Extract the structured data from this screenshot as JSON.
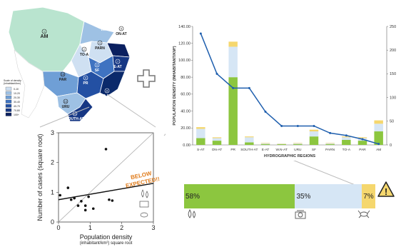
{
  "colors": {
    "green": "#8cc63f",
    "light_blue": "#d6e6f5",
    "yellow": "#f5d76e",
    "line_blue": "#1f5fae",
    "orange": "#e07b1a",
    "map_teal": "#b9e4cf",
    "map_dark": "#0b2a6b"
  },
  "map": {
    "regions": [
      {
        "code": "1",
        "name": "AM"
      },
      {
        "code": "2",
        "name": "TO-A"
      },
      {
        "code": "3",
        "name": "W.N-AT"
      },
      {
        "code": "4",
        "name": "PARN"
      },
      {
        "code": "5",
        "name": "ON-AT"
      },
      {
        "code": "6",
        "name": "SF"
      },
      {
        "code": "7",
        "name": "E-AT"
      },
      {
        "code": "8",
        "name": "S-AT"
      },
      {
        "code": "9",
        "name": "PR"
      },
      {
        "code": "10",
        "name": "PAR"
      },
      {
        "code": "11",
        "name": "SOUTH-AT"
      },
      {
        "code": "12",
        "name": "URU"
      }
    ],
    "legend": {
      "title": "Scale of density\n(inhabitant/km²)",
      "items": [
        {
          "label": "0-10",
          "color": "#cfe0f2"
        },
        {
          "label": "10-20",
          "color": "#9ec1e4"
        },
        {
          "label": "20-30",
          "color": "#6f9fd6"
        },
        {
          "label": "30-40",
          "color": "#3f73c1"
        },
        {
          "label": "40-70",
          "color": "#2350a3"
        },
        {
          "label": "70-80",
          "color": "#163784"
        },
        {
          "label": "100+",
          "color": "#0b2060"
        }
      ]
    }
  },
  "chart_data": [
    {
      "type": "bar",
      "title": "",
      "xlabel": "HYDROGRAPHIC REGIONS",
      "ylabel": "POPULATION DENSITY (INHABITANT/KM²)",
      "ylim": [
        0,
        140
      ],
      "y_ticks": [
        "0.00",
        "20.00",
        "40.00",
        "60.00",
        "80.00",
        "100.00",
        "120.00",
        "140.00"
      ],
      "y2lim": [
        0,
        250
      ],
      "y2_ticks": [
        "0",
        "50",
        "100",
        "150",
        "200",
        "250"
      ],
      "categories": [
        "S-AT",
        "ON-AT",
        "PR",
        "SOUTH-AT",
        "E-AT",
        "W.N-AT",
        "URU",
        "SF",
        "PARN",
        "TO-A",
        "PAR",
        "AM"
      ],
      "stacked": true,
      "series": [
        {
          "color": "#8cc63f",
          "values": [
            8,
            5,
            80,
            3,
            1,
            0.8,
            1,
            10,
            1,
            6,
            5,
            16
          ]
        },
        {
          "color": "#d6e6f5",
          "values": [
            11,
            3,
            36,
            6,
            1,
            0.5,
            1,
            6,
            1,
            3,
            3,
            9
          ]
        },
        {
          "color": "#f5d76e",
          "values": [
            2,
            1,
            6,
            1,
            0.5,
            0.3,
            0.5,
            2,
            0.5,
            1,
            1,
            4
          ]
        }
      ],
      "line": {
        "axis": "secondary",
        "color": "#1f5fae",
        "values": [
          235,
          150,
          120,
          120,
          70,
          40,
          40,
          40,
          25,
          20,
          12,
          2
        ]
      },
      "grid": false
    },
    {
      "type": "scatter",
      "title": "",
      "xlabel": "Population density",
      "xlabel_sub": "(inhabitant/km²) square root",
      "ylabel": "Number of cases (square root)",
      "xlim": [
        0,
        3
      ],
      "ylim": [
        0,
        3
      ],
      "x_ticks": [
        "0",
        "1",
        "2",
        "3"
      ],
      "y_ticks": [
        "0",
        "1",
        "2",
        "3"
      ],
      "points": [
        {
          "x": 0.05,
          "y": 0.9
        },
        {
          "x": 0.3,
          "y": 1.15
        },
        {
          "x": 0.4,
          "y": 0.75
        },
        {
          "x": 0.5,
          "y": 0.8
        },
        {
          "x": 0.62,
          "y": 0.55
        },
        {
          "x": 0.72,
          "y": 0.7
        },
        {
          "x": 0.85,
          "y": 0.4
        },
        {
          "x": 0.85,
          "y": 0.55
        },
        {
          "x": 0.95,
          "y": 0.85
        },
        {
          "x": 1.1,
          "y": 0.45
        },
        {
          "x": 1.5,
          "y": 2.45
        },
        {
          "x": 1.6,
          "y": 0.75
        },
        {
          "x": 1.7,
          "y": 0.72
        }
      ],
      "reference_line": [
        {
          "x": 0,
          "y": 0
        },
        {
          "x": 3,
          "y": 3
        }
      ],
      "trend_line": [
        {
          "x": 0,
          "y": 0.75
        },
        {
          "x": 3,
          "y": 1.3
        }
      ],
      "annotation": "BELOW\nEXPECTED!!"
    }
  ],
  "proportion_bar": {
    "segments": [
      {
        "label": "58%",
        "value": 58,
        "color": "#8cc63f"
      },
      {
        "label": "35%",
        "value": 35,
        "color": "#d6e6f5"
      },
      {
        "label": "7%",
        "value": 7,
        "color": "#f5d76e"
      }
    ],
    "warning_symbol": "!"
  },
  "plus_symbol": "+"
}
